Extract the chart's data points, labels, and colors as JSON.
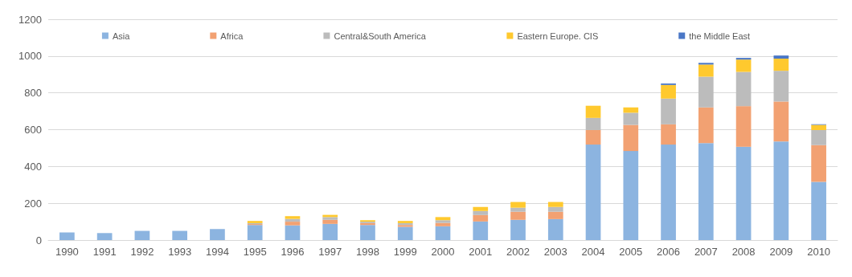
{
  "chart_data": {
    "type": "bar",
    "stacked": true,
    "categories": [
      "1990",
      "1991",
      "1992",
      "1993",
      "1994",
      "1995",
      "1996",
      "1997",
      "1998",
      "1999",
      "2000",
      "2001",
      "2002",
      "2003",
      "2004",
      "2005",
      "2006",
      "2007",
      "2008",
      "2009",
      "2010"
    ],
    "series": [
      {
        "name": "Asia",
        "color": "#8cb4e0",
        "values": [
          42,
          38,
          50,
          50,
          60,
          82,
          80,
          88,
          82,
          72,
          75,
          101,
          110,
          114,
          519,
          484,
          519,
          527,
          507,
          536,
          316
        ]
      },
      {
        "name": "Africa",
        "color": "#f2a172",
        "values": [
          0,
          0,
          0,
          0,
          0,
          5,
          20,
          22,
          10,
          10,
          18,
          35,
          44,
          40,
          79,
          142,
          110,
          194,
          221,
          217,
          200
        ]
      },
      {
        "name": "Central&South America",
        "color": "#bcbcbc",
        "values": [
          0,
          0,
          0,
          0,
          0,
          5,
          15,
          15,
          8,
          10,
          15,
          22,
          22,
          26,
          66,
          66,
          140,
          167,
          186,
          167,
          82
        ]
      },
      {
        "name": "Eastern Europe. CIS",
        "color": "#ffc92e",
        "values": [
          0,
          0,
          0,
          0,
          0,
          12,
          15,
          12,
          8,
          12,
          17,
          22,
          31,
          27,
          66,
          29,
          74,
          66,
          67,
          66,
          28
        ]
      },
      {
        "name": "the Middle East",
        "color": "#4a77c6",
        "values": [
          0,
          0,
          0,
          0,
          0,
          0,
          0,
          0,
          0,
          0,
          0,
          0,
          0,
          0,
          0,
          0,
          8,
          9,
          9,
          17,
          4
        ]
      }
    ],
    "ylim": [
      0,
      1200
    ],
    "yticks": [
      0,
      200,
      400,
      600,
      800,
      1000,
      1200
    ],
    "grid": "y",
    "legend": "top"
  }
}
